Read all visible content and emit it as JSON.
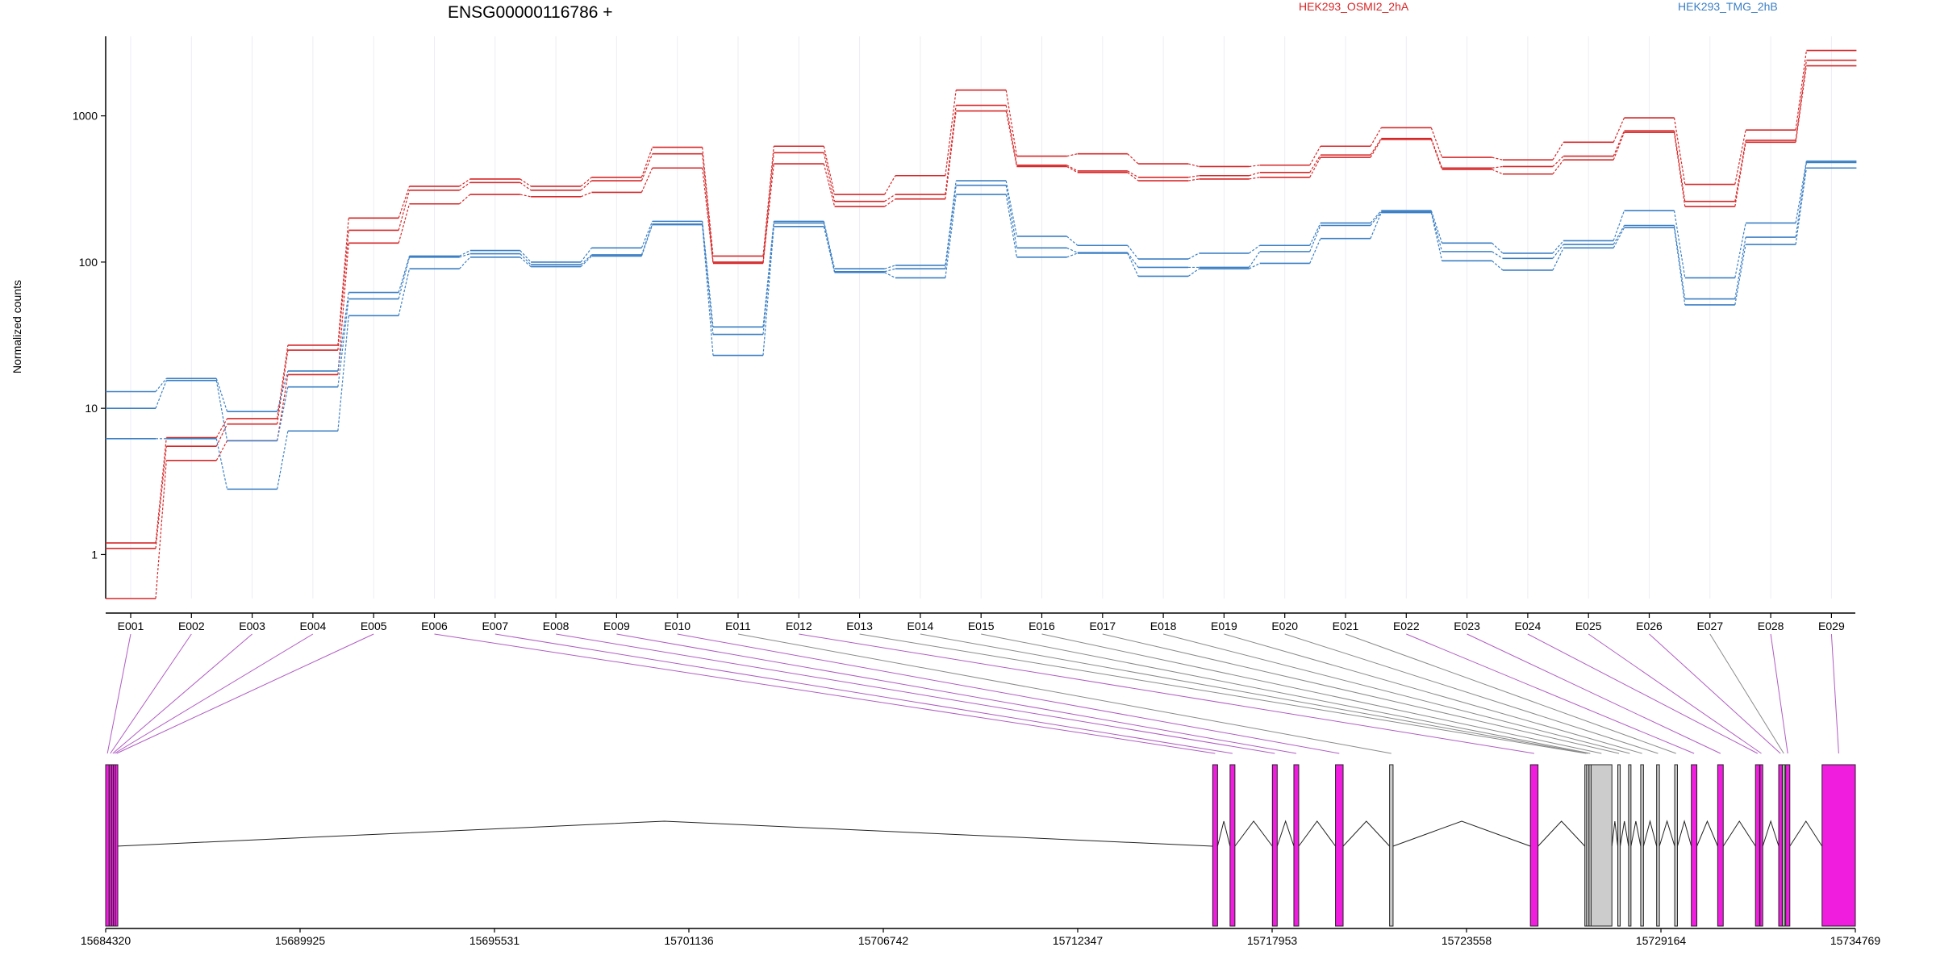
{
  "colors": {
    "series_a": "#d62728",
    "series_b": "#3b7fc4",
    "exon": "#f01ddf",
    "exon_aggregate": "#cccccc",
    "connector": "#b15cc4",
    "connector_aggregate": "#8a8a8a"
  },
  "chart_data": {
    "type": "line",
    "title": "ENSG00000116786 +",
    "ylabel": "Normalized counts",
    "yscale": "log",
    "ylim": [
      0.5,
      3500
    ],
    "yticks": [
      1,
      10,
      100,
      1000
    ],
    "ytick_labels": [
      "1",
      "10",
      "100",
      "1000"
    ],
    "grid": "vertical",
    "legend": "top",
    "categories": [
      "E001",
      "E002",
      "E003",
      "E004",
      "E005",
      "E006",
      "E007",
      "E008",
      "E009",
      "E010",
      "E011",
      "E012",
      "E013",
      "E014",
      "E015",
      "E016",
      "E017",
      "E018",
      "E019",
      "E020",
      "E021",
      "E022",
      "E023",
      "E024",
      "E025",
      "E026",
      "E027",
      "E028",
      "E029"
    ],
    "groups": [
      {
        "name": "HEK293_OSMI2_2hA",
        "color": "#d62728",
        "replicates": [
          [
            1.2,
            6.3,
            8.5,
            27,
            200,
            330,
            370,
            330,
            380,
            610,
            110,
            620,
            290,
            390,
            1500,
            530,
            550,
            470,
            450,
            460,
            620,
            830,
            520,
            500,
            660,
            970,
            340,
            800,
            2800
          ],
          [
            1.1,
            5.5,
            7.8,
            25,
            165,
            310,
            350,
            310,
            360,
            550,
            100,
            560,
            260,
            290,
            1180,
            460,
            420,
            380,
            390,
            410,
            540,
            700,
            440,
            450,
            530,
            790,
            260,
            680,
            2400
          ],
          [
            0.5,
            4.4,
            6.0,
            17,
            135,
            250,
            290,
            280,
            300,
            440,
            98,
            470,
            240,
            270,
            1080,
            450,
            410,
            360,
            370,
            380,
            520,
            690,
            430,
            400,
            500,
            770,
            240,
            660,
            2200
          ]
        ]
      },
      {
        "name": "HEK293_TMG_2hB",
        "color": "#3b7fc4",
        "replicates": [
          [
            13,
            16,
            9.5,
            18,
            62,
            110,
            120,
            100,
            125,
            190,
            36,
            190,
            90,
            95,
            360,
            150,
            130,
            105,
            115,
            130,
            185,
            225,
            135,
            115,
            140,
            225,
            78,
            185,
            490
          ],
          [
            10,
            15.5,
            6.0,
            14,
            56,
            108,
            114,
            96,
            112,
            182,
            32,
            185,
            86,
            90,
            335,
            125,
            116,
            92,
            92,
            118,
            178,
            220,
            118,
            106,
            132,
            178,
            56,
            148,
            480
          ],
          [
            6.2,
            6.2,
            2.8,
            7.0,
            43,
            90,
            108,
            93,
            110,
            180,
            23,
            175,
            85,
            78,
            290,
            108,
            115,
            80,
            90,
            98,
            145,
            218,
            102,
            88,
            125,
            172,
            51,
            132,
            440
          ]
        ]
      }
    ],
    "gene_model": {
      "coordinate_labels": [
        "15684320",
        "15689925",
        "15695531",
        "15701136",
        "15706742",
        "15712347",
        "15717953",
        "15723558",
        "15729164",
        "15734769"
      ],
      "coordinate_ticks": [
        15684320,
        15689925,
        15695531,
        15701136,
        15706742,
        15712347,
        15717953,
        15723558,
        15729164,
        15734769
      ],
      "exons": [
        {
          "id": "E001",
          "start": 15684320,
          "end": 15684420,
          "status": "significant"
        },
        {
          "id": "E002",
          "start": 15684420,
          "end": 15684490,
          "status": "significant"
        },
        {
          "id": "E003",
          "start": 15684490,
          "end": 15684540,
          "status": "significant"
        },
        {
          "id": "E004",
          "start": 15684540,
          "end": 15684600,
          "status": "significant"
        },
        {
          "id": "E005",
          "start": 15684600,
          "end": 15684620,
          "status": "significant"
        },
        {
          "id": "E006",
          "start": 15716240,
          "end": 15716380,
          "status": "significant"
        },
        {
          "id": "E007",
          "start": 15716740,
          "end": 15716880,
          "status": "significant"
        },
        {
          "id": "E008",
          "start": 15717960,
          "end": 15718100,
          "status": "significant"
        },
        {
          "id": "E009",
          "start": 15718580,
          "end": 15718720,
          "status": "significant"
        },
        {
          "id": "E010",
          "start": 15719780,
          "end": 15720000,
          "status": "significant"
        },
        {
          "id": "E011",
          "start": 15721340,
          "end": 15721440,
          "status": "non-significant"
        },
        {
          "id": "E012",
          "start": 15725400,
          "end": 15725620,
          "status": "significant"
        },
        {
          "id": "E013",
          "start": 15726970,
          "end": 15727020,
          "status": "non-significant"
        },
        {
          "id": "E014",
          "start": 15727020,
          "end": 15727080,
          "status": "non-significant"
        },
        {
          "id": "E015",
          "start": 15727090,
          "end": 15727150,
          "status": "non-significant"
        },
        {
          "id": "E016",
          "start": 15727150,
          "end": 15727750,
          "status": "non-significant"
        },
        {
          "id": "E017",
          "start": 15727920,
          "end": 15727990,
          "status": "non-significant"
        },
        {
          "id": "E018",
          "start": 15728230,
          "end": 15728300,
          "status": "non-significant"
        },
        {
          "id": "E019",
          "start": 15728580,
          "end": 15728660,
          "status": "non-significant"
        },
        {
          "id": "E020",
          "start": 15729040,
          "end": 15729120,
          "status": "non-significant"
        },
        {
          "id": "E021",
          "start": 15729560,
          "end": 15729640,
          "status": "non-significant"
        },
        {
          "id": "E022",
          "start": 15730040,
          "end": 15730200,
          "status": "significant"
        },
        {
          "id": "E023",
          "start": 15730800,
          "end": 15730960,
          "status": "significant"
        },
        {
          "id": "E024",
          "start": 15731890,
          "end": 15732010,
          "status": "significant"
        },
        {
          "id": "E025",
          "start": 15732020,
          "end": 15732100,
          "status": "significant"
        },
        {
          "id": "E026",
          "start": 15732560,
          "end": 15732660,
          "status": "significant"
        },
        {
          "id": "E027",
          "start": 15732670,
          "end": 15732720,
          "status": "non-significant"
        },
        {
          "id": "E028",
          "start": 15732760,
          "end": 15732880,
          "status": "significant"
        },
        {
          "id": "E029",
          "start": 15733810,
          "end": 15734769,
          "status": "significant"
        }
      ]
    }
  }
}
